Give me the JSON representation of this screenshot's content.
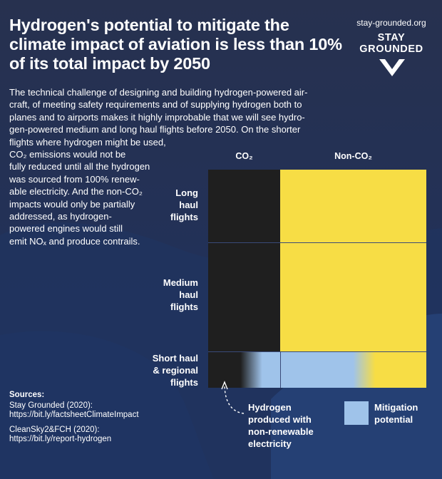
{
  "title": "Hydrogen's potential to mitigate the climate impact of aviation is less than 10% of its total impact by 2050",
  "brand": {
    "website": "stay-grounded.org",
    "logo_line1": "STAY",
    "logo_line2": "GROUNDED",
    "logo_icon": "v-chevron-icon"
  },
  "intro_lines": [
    "The technical challenge of designing and building hydrogen-powered air-",
    "craft, of meeting safety requirements and of supplying hydrogen both to",
    "planes and to airports makes it highly improbable that we will see hydro-",
    "gen-powered medium and long haul flights before 2050. On the shorter",
    "flights where hydrogen might be used,",
    "CO₂ emissions would not be",
    "fully reduced until all the hydrogen",
    "was sourced from 100% renew-",
    "able electricity. And the non-CO₂",
    "impacts would only be partially",
    "addressed, as hydrogen-",
    "powered engines would still",
    "emit NOₓ and produce contrails."
  ],
  "chart_data": {
    "type": "table",
    "columns": [
      "CO₂",
      "Non-CO₂"
    ],
    "rows": [
      {
        "label_lines": [
          "Long",
          "haul",
          "flights"
        ]
      },
      {
        "label_lines": [
          "Medium",
          "haul",
          "flights"
        ]
      },
      {
        "label_lines": [
          "Short haul",
          "& regional",
          "flights"
        ]
      }
    ],
    "colors": {
      "co2": "#1f1f1f",
      "non_co2": "#f7dd45",
      "mitigation": "#9fc3ea"
    }
  },
  "legend": {
    "hydrogen_lines": [
      "Hydrogen",
      "produced with",
      "non-renewable",
      "electricity"
    ],
    "mitigation_lines": [
      "Mitigation",
      "potential"
    ]
  },
  "sources": {
    "heading": "Sources:",
    "items": [
      {
        "name": "Stay Grounded (2020):",
        "url": "https://bit.ly/factsheetClimateImpact"
      },
      {
        "name": "CleanSky2&FCH (2020):",
        "url": "https://bit.ly/report-hydrogen"
      }
    ]
  }
}
